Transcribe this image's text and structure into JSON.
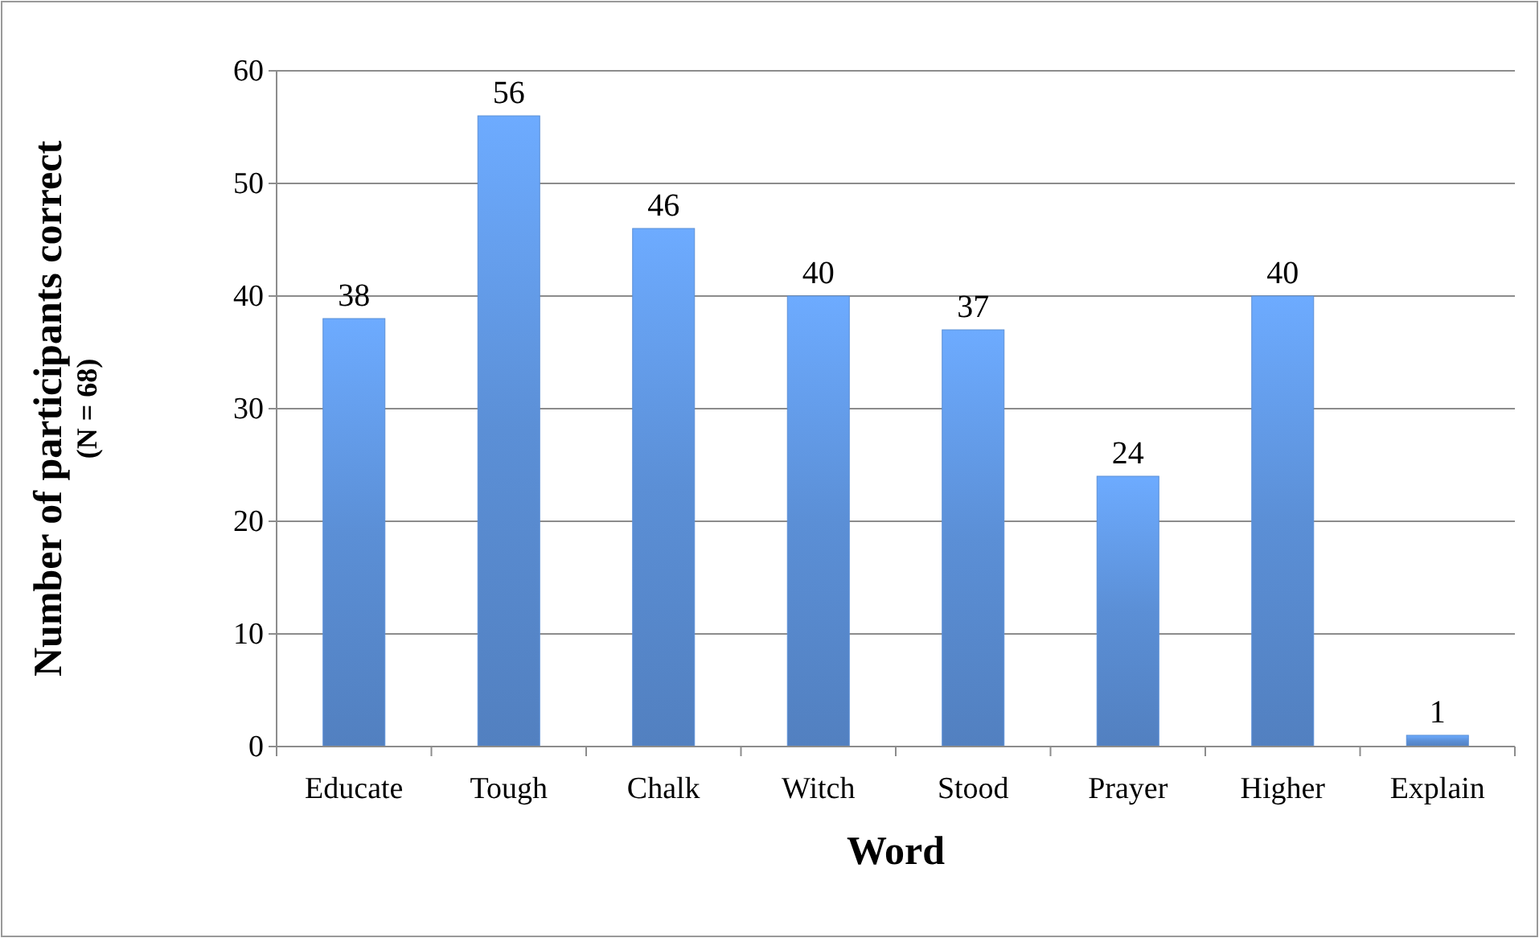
{
  "chart_data": {
    "type": "bar",
    "xlabel": "Word",
    "ylabel": "Number of participants correct\n(N = 68)",
    "categories": [
      "Educate",
      "Tough",
      "Chalk",
      "Witch",
      "Stood",
      "Prayer",
      "Higher",
      "Explain"
    ],
    "values": [
      38,
      56,
      46,
      40,
      37,
      24,
      40,
      1
    ],
    "color": "#5b8fd6",
    "ylim": [
      0,
      60
    ],
    "yticks": [
      0,
      10,
      20,
      30,
      40,
      50,
      60
    ],
    "grid": "y",
    "data_labels": true
  }
}
